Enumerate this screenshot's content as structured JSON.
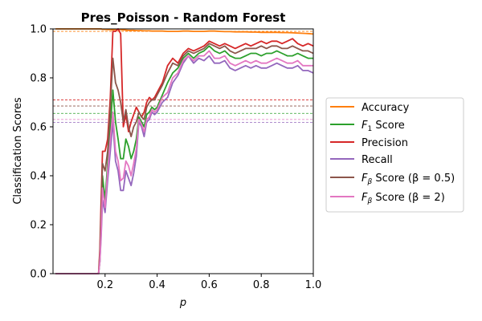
{
  "chart_data": {
    "type": "line",
    "title": "Pres_Poisson - Random Forest",
    "xlabel": "p",
    "ylabel": "Classification Scores",
    "xlim": [
      0.0,
      1.0
    ],
    "ylim": [
      0.0,
      1.0
    ],
    "x_ticks": [
      "0.2",
      "0.4",
      "0.6",
      "0.8",
      "1.0"
    ],
    "y_ticks": [
      "0.0",
      "0.2",
      "0.4",
      "0.6",
      "0.8",
      "1.0"
    ],
    "grid": false,
    "legend_position": "right",
    "x": [
      0.01,
      0.05,
      0.1,
      0.15,
      0.175,
      0.18,
      0.185,
      0.19,
      0.2,
      0.21,
      0.22,
      0.23,
      0.24,
      0.25,
      0.26,
      0.27,
      0.28,
      0.29,
      0.3,
      0.31,
      0.32,
      0.33,
      0.34,
      0.35,
      0.36,
      0.37,
      0.38,
      0.39,
      0.4,
      0.42,
      0.44,
      0.46,
      0.48,
      0.5,
      0.52,
      0.54,
      0.56,
      0.58,
      0.6,
      0.62,
      0.64,
      0.66,
      0.68,
      0.7,
      0.72,
      0.74,
      0.76,
      0.78,
      0.8,
      0.82,
      0.84,
      0.86,
      0.88,
      0.9,
      0.92,
      0.94,
      0.96,
      0.98,
      1.0
    ],
    "series": [
      {
        "name": "Accuracy",
        "color": "#ff7f0e",
        "values": [
          1.0,
          1.0,
          1.0,
          1.0,
          1.0,
          1.0,
          1.0,
          0.998,
          0.998,
          0.997,
          0.997,
          0.996,
          0.997,
          0.997,
          0.997,
          0.996,
          0.995,
          0.994,
          0.994,
          0.994,
          0.993,
          0.993,
          0.993,
          0.992,
          0.992,
          0.992,
          0.991,
          0.991,
          0.991,
          0.991,
          0.99,
          0.99,
          0.99,
          0.991,
          0.991,
          0.99,
          0.99,
          0.99,
          0.991,
          0.991,
          0.99,
          0.989,
          0.989,
          0.988,
          0.988,
          0.988,
          0.987,
          0.987,
          0.986,
          0.986,
          0.986,
          0.986,
          0.985,
          0.985,
          0.984,
          0.983,
          0.982,
          0.981,
          0.979
        ],
        "hline": 0.99
      },
      {
        "name": "F1 Score",
        "color": "#2ca02c",
        "values": [
          0.0,
          0.0,
          0.0,
          0.0,
          0.0,
          0.05,
          0.2,
          0.4,
          0.3,
          0.45,
          0.6,
          0.75,
          0.62,
          0.55,
          0.47,
          0.47,
          0.55,
          0.52,
          0.47,
          0.5,
          0.55,
          0.64,
          0.62,
          0.6,
          0.65,
          0.66,
          0.68,
          0.67,
          0.68,
          0.73,
          0.78,
          0.82,
          0.84,
          0.88,
          0.9,
          0.88,
          0.9,
          0.91,
          0.93,
          0.91,
          0.9,
          0.91,
          0.89,
          0.88,
          0.88,
          0.89,
          0.9,
          0.9,
          0.89,
          0.9,
          0.9,
          0.91,
          0.9,
          0.89,
          0.89,
          0.9,
          0.89,
          0.88,
          0.88
        ],
        "hline": 0.655
      },
      {
        "name": "Precision",
        "color": "#d62728",
        "values": [
          0.0,
          0.0,
          0.0,
          0.0,
          0.0,
          0.1,
          0.3,
          0.5,
          0.5,
          0.55,
          0.72,
          0.99,
          0.99,
          1.0,
          0.98,
          0.6,
          0.65,
          0.58,
          0.62,
          0.65,
          0.68,
          0.66,
          0.64,
          0.66,
          0.7,
          0.72,
          0.71,
          0.72,
          0.74,
          0.78,
          0.85,
          0.88,
          0.86,
          0.9,
          0.92,
          0.91,
          0.92,
          0.93,
          0.95,
          0.94,
          0.93,
          0.94,
          0.93,
          0.92,
          0.93,
          0.94,
          0.93,
          0.94,
          0.95,
          0.94,
          0.95,
          0.95,
          0.94,
          0.95,
          0.96,
          0.94,
          0.93,
          0.94,
          0.93
        ],
        "hline": 0.71
      },
      {
        "name": "Recall",
        "color": "#9467bd",
        "values": [
          0.0,
          0.0,
          0.0,
          0.0,
          0.0,
          0.05,
          0.15,
          0.3,
          0.25,
          0.38,
          0.5,
          0.62,
          0.46,
          0.42,
          0.34,
          0.34,
          0.42,
          0.39,
          0.36,
          0.41,
          0.48,
          0.62,
          0.6,
          0.56,
          0.62,
          0.63,
          0.66,
          0.65,
          0.66,
          0.7,
          0.72,
          0.78,
          0.81,
          0.86,
          0.89,
          0.86,
          0.88,
          0.87,
          0.89,
          0.86,
          0.86,
          0.87,
          0.84,
          0.83,
          0.84,
          0.85,
          0.84,
          0.85,
          0.84,
          0.84,
          0.85,
          0.86,
          0.85,
          0.84,
          0.84,
          0.85,
          0.83,
          0.83,
          0.82
        ],
        "hline": 0.618
      },
      {
        "name": "Fβ Score (β = 0.5)",
        "color": "#8c564b",
        "values": [
          0.0,
          0.0,
          0.0,
          0.0,
          0.0,
          0.08,
          0.25,
          0.45,
          0.42,
          0.5,
          0.68,
          0.88,
          0.78,
          0.75,
          0.7,
          0.62,
          0.67,
          0.6,
          0.56,
          0.6,
          0.62,
          0.66,
          0.64,
          0.63,
          0.68,
          0.7,
          0.71,
          0.71,
          0.73,
          0.77,
          0.82,
          0.86,
          0.85,
          0.89,
          0.91,
          0.9,
          0.91,
          0.92,
          0.94,
          0.93,
          0.92,
          0.93,
          0.91,
          0.9,
          0.91,
          0.92,
          0.92,
          0.92,
          0.93,
          0.92,
          0.93,
          0.93,
          0.92,
          0.92,
          0.93,
          0.92,
          0.91,
          0.91,
          0.9
        ],
        "hline": 0.685
      },
      {
        "name": "Fβ Score (β = 2)",
        "color": "#e377c2",
        "values": [
          0.0,
          0.0,
          0.0,
          0.0,
          0.0,
          0.05,
          0.17,
          0.35,
          0.27,
          0.42,
          0.55,
          0.66,
          0.5,
          0.46,
          0.38,
          0.39,
          0.46,
          0.44,
          0.4,
          0.45,
          0.51,
          0.63,
          0.61,
          0.58,
          0.63,
          0.64,
          0.67,
          0.66,
          0.67,
          0.72,
          0.74,
          0.8,
          0.82,
          0.87,
          0.89,
          0.87,
          0.89,
          0.89,
          0.91,
          0.88,
          0.88,
          0.89,
          0.86,
          0.85,
          0.86,
          0.87,
          0.86,
          0.87,
          0.86,
          0.86,
          0.87,
          0.88,
          0.87,
          0.86,
          0.86,
          0.87,
          0.85,
          0.85,
          0.85
        ],
        "hline": 0.63
      }
    ]
  },
  "legend": {
    "accuracy": "Accuracy",
    "f1_prefix": "F",
    "f1_sub": "1",
    "f1_suffix": " Score",
    "precision": "Precision",
    "recall": "Recall",
    "fbeta_prefix": "F",
    "fbeta_sub": "β",
    "fbeta05_suffix": " Score (β = 0.5)",
    "fbeta2_suffix": " Score (β = 2)"
  }
}
